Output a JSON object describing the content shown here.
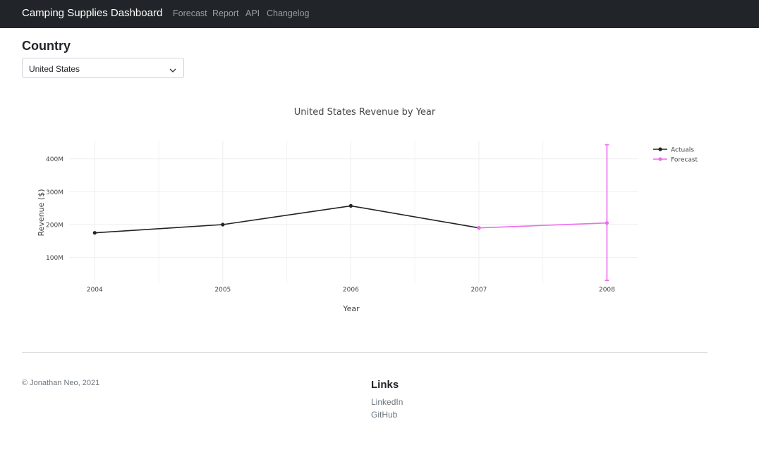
{
  "navbar": {
    "brand": "Camping Supplies Dashboard",
    "links": [
      "Forecast",
      "Report",
      "API",
      "Changelog"
    ]
  },
  "country": {
    "heading": "Country",
    "selected": "United States"
  },
  "chart_data": {
    "type": "line",
    "title": "United States Revenue by Year",
    "xlabel": "Year",
    "ylabel": "Revenue ($)",
    "x_ticks": [
      "2004",
      "2005",
      "2006",
      "2007",
      "2008"
    ],
    "y_ticks": [
      "100M",
      "200M",
      "300M",
      "400M"
    ],
    "y_tick_values": [
      100,
      200,
      300,
      400
    ],
    "ylim": [
      20,
      455
    ],
    "x_range": [
      2003.8,
      2008.24
    ],
    "grid": true,
    "legend_position": "top-right",
    "series": [
      {
        "name": "Actuals",
        "color": "#222222",
        "x": [
          2004,
          2005,
          2006,
          2007
        ],
        "y": [
          175,
          200,
          257,
          190
        ]
      },
      {
        "name": "Forecast",
        "color": "#ee6cee",
        "x": [
          2007,
          2008
        ],
        "y": [
          190,
          205
        ],
        "error_y": [
          {
            "low": 190,
            "high": 190
          },
          {
            "low": 30,
            "high": 443
          }
        ]
      }
    ]
  },
  "footer": {
    "copyright": "© Jonathan Neo, 2021",
    "links_heading": "Links",
    "links": [
      "LinkedIn",
      "GitHub"
    ]
  }
}
